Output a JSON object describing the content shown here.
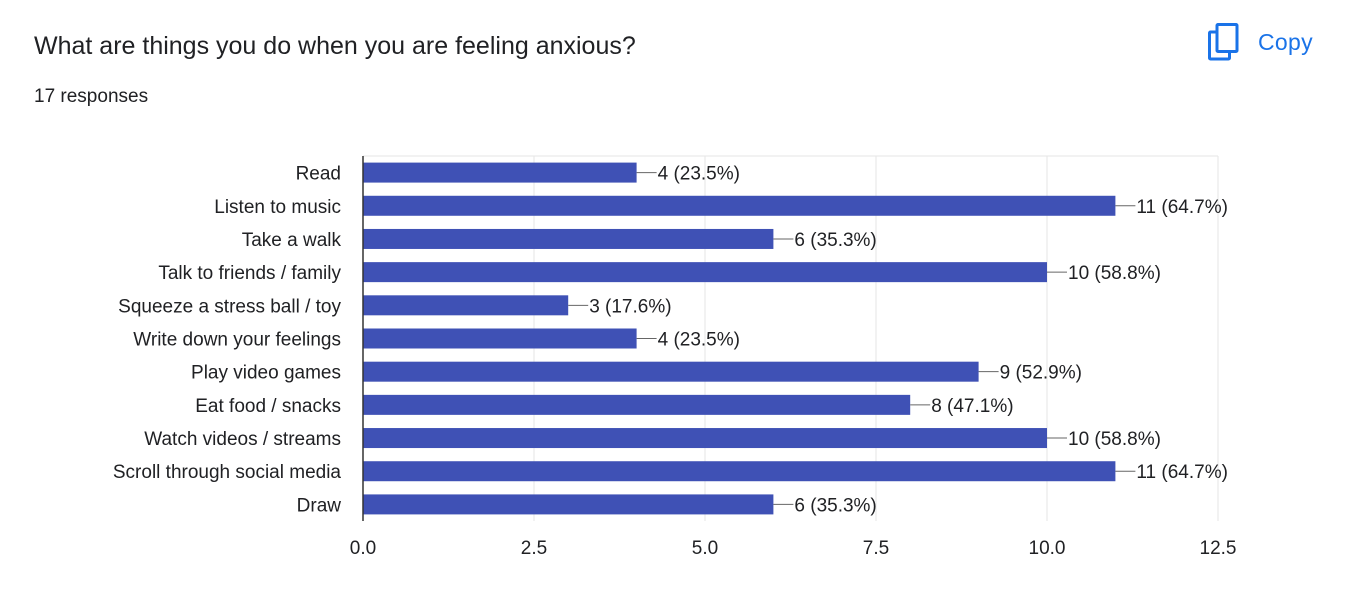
{
  "question": {
    "title": "What are things you do when you are feeling anxious?",
    "responses": "17 responses"
  },
  "toolbar": {
    "copy_label": "Copy",
    "copy_icon": "copy-icon",
    "accent_color": "#1a73e8"
  },
  "chart_data": {
    "type": "bar",
    "orientation": "horizontal",
    "categories": [
      "Read",
      "Listen to music",
      "Take a walk",
      "Talk to friends / family",
      "Squeeze a stress ball / toy",
      "Write down your feelings",
      "Play video games",
      "Eat food / snacks",
      "Watch videos / streams",
      "Scroll through social media",
      "Draw"
    ],
    "values": [
      4,
      11,
      6,
      10,
      3,
      4,
      9,
      8,
      10,
      11,
      6
    ],
    "data_labels": [
      "4 (23.5%)",
      "11 (64.7%)",
      "6 (35.3%)",
      "10 (58.8%)",
      "3 (17.6%)",
      "4 (23.5%)",
      "9 (52.9%)",
      "8 (47.1%)",
      "10 (58.8%)",
      "11 (64.7%)",
      "6 (35.3%)"
    ],
    "x_ticks": [
      "0.0",
      "2.5",
      "5.0",
      "7.5",
      "10.0",
      "12.5"
    ],
    "xlim": [
      0,
      12.5
    ],
    "grid": true,
    "bar_color": "#3f51b5"
  }
}
